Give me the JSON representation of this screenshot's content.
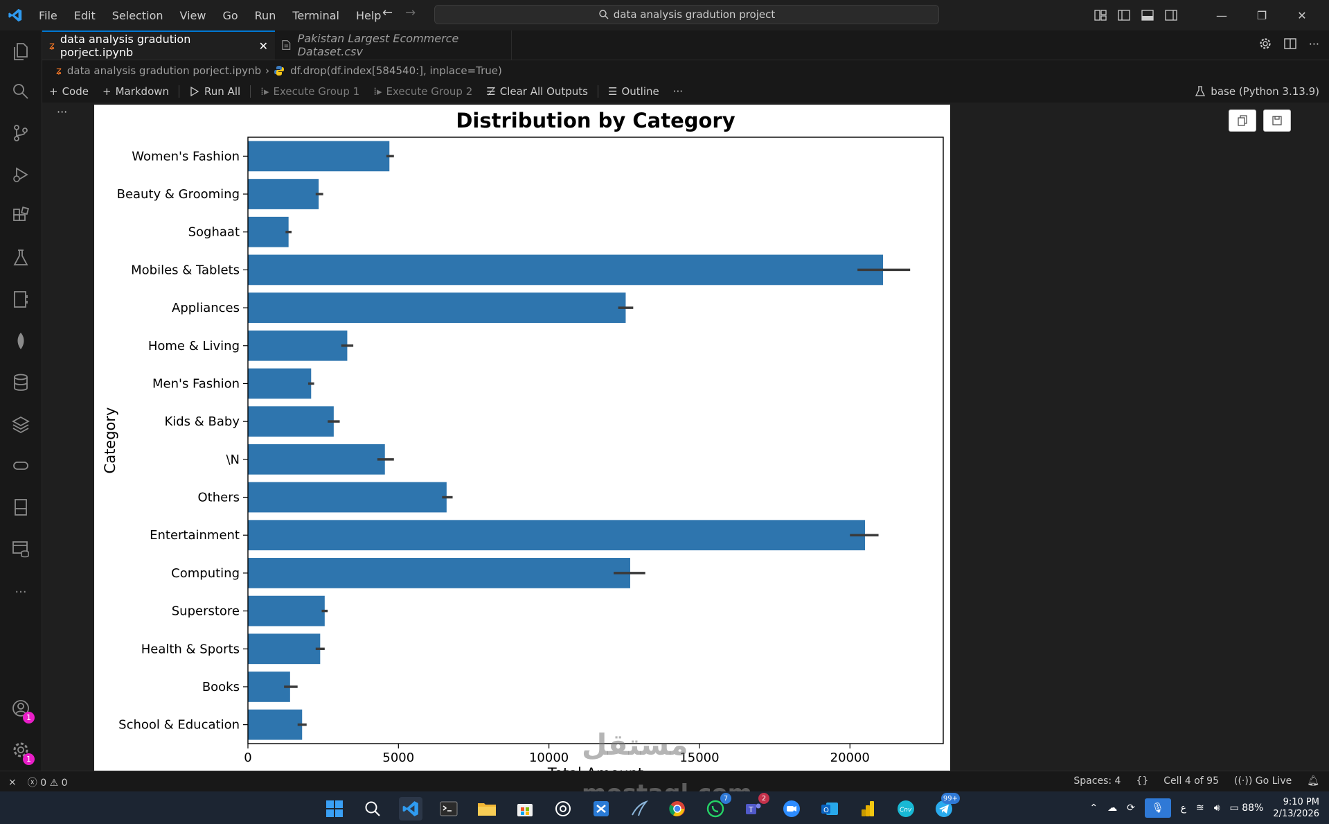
{
  "menu": [
    "File",
    "Edit",
    "Selection",
    "View",
    "Go",
    "Run",
    "Terminal",
    "Help"
  ],
  "search": {
    "text": "data analysis gradution project"
  },
  "tabs": [
    {
      "label": "data analysis gradution porject.ipynb",
      "active": true
    },
    {
      "label": "Pakistan Largest Ecommerce Dataset.csv",
      "active": false
    }
  ],
  "breadcrumb": {
    "file": "data analysis gradution porject.ipynb",
    "cell": "df.drop(df.index[584540:], inplace=True)"
  },
  "toolbar": {
    "code": "Code",
    "markdown": "Markdown",
    "run_all": "Run All",
    "execute_group_1": "Execute Group 1",
    "execute_group_2": "Execute Group 2",
    "clear_outputs": "Clear All Outputs",
    "outline": "Outline",
    "more": "···"
  },
  "kernel": {
    "label": "base (Python 3.13.9)"
  },
  "cell_more": "···",
  "activity_badges": {
    "accounts": "1",
    "manage": "1"
  },
  "chart_data": {
    "type": "bar",
    "orientation": "horizontal",
    "title": "Distribution by Category",
    "ylabel": "Category",
    "xlabel": "Total Amount",
    "xlim": [
      0,
      23100
    ],
    "xticks": [
      0,
      5000,
      10000,
      15000,
      20000
    ],
    "bar_color": "#2e75ae",
    "errorbar_color": "#3a3a3a",
    "categories": [
      "Women's Fashion",
      "Beauty & Grooming",
      "Soghaat",
      "Mobiles & Tablets",
      "Appliances",
      "Home & Living",
      "Men's Fashion",
      "Kids & Baby",
      "\\N",
      "Others",
      "Entertainment",
      "Computing",
      "Superstore",
      "Health & Sports",
      "Books",
      "School & Education"
    ],
    "values": [
      4700,
      2350,
      1350,
      21100,
      12550,
      3300,
      2100,
      2850,
      4550,
      6600,
      20500,
      12700,
      2550,
      2400,
      1400,
      1800
    ],
    "error_low": [
      4600,
      2250,
      1250,
      20250,
      12300,
      3100,
      2000,
      2650,
      4300,
      6450,
      20000,
      12150,
      2450,
      2250,
      1200,
      1650
    ],
    "error_high": [
      4850,
      2500,
      1450,
      22000,
      12800,
      3500,
      2200,
      3050,
      4850,
      6800,
      20950,
      13200,
      2650,
      2550,
      1650,
      1950
    ]
  },
  "status": {
    "errors": "0",
    "warnings": "0",
    "spaces": "Spaces: 4",
    "cell": "Cell 4 of 95",
    "go_live": "Go Live"
  },
  "taskbar": {
    "whatsapp_badge": "7",
    "teams_badge": "2",
    "telegram_badge": "99+",
    "lang": "ع",
    "battery": "88%",
    "time": "9:10 PM",
    "date": "2/13/2026"
  },
  "watermark": {
    "arabic": "مستقل",
    "latin": "mostaql.com"
  }
}
